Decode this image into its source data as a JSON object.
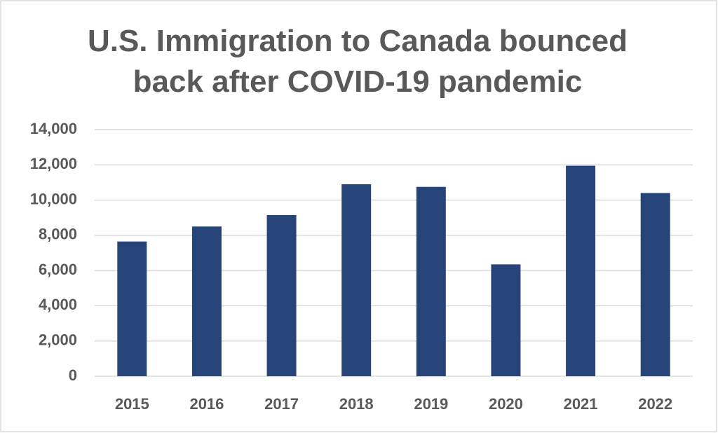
{
  "chart_data": {
    "type": "bar",
    "title": "U.S. Immigration to Canada bounced back after COVID-19 pandemic",
    "categories": [
      "2015",
      "2016",
      "2017",
      "2018",
      "2019",
      "2020",
      "2021",
      "2022"
    ],
    "values": [
      7650,
      8500,
      9150,
      10900,
      10750,
      6350,
      11950,
      10400
    ],
    "color": "#264478",
    "ylim": [
      0,
      14000
    ],
    "yticks": [
      0,
      {
        "value": 2000,
        "label": "2,000"
      },
      {
        "value": 4000,
        "label": "4,000"
      },
      {
        "value": 6000,
        "label": "6,000"
      },
      {
        "value": 8000,
        "label": "8,000"
      },
      {
        "value": 10000,
        "label": "10,000"
      },
      {
        "value": 12000,
        "label": "12,000"
      },
      {
        "value": 14000,
        "label": "14,000"
      }
    ],
    "grid": true
  }
}
